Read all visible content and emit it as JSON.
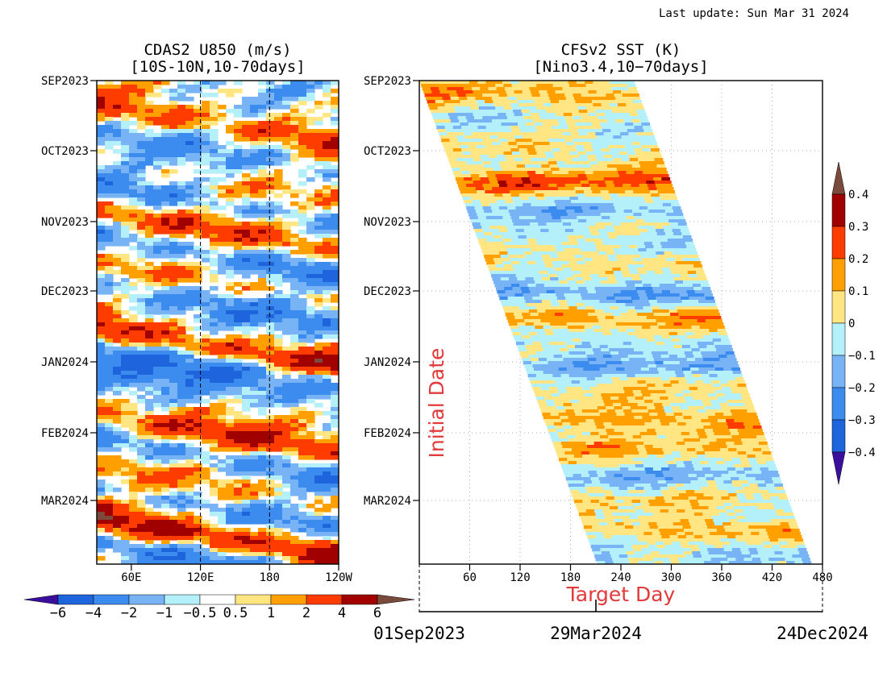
{
  "header": {
    "last_update": "Last update: Sun Mar 31 2024"
  },
  "colors": {
    "u850": [
      "#3a0f9e",
      "#1e64dc",
      "#3c8cf0",
      "#78b4f5",
      "#b4f0fa",
      "#ffffff",
      "#ffe682",
      "#ffa000",
      "#ff3c00",
      "#a00000",
      "#7a4a3a"
    ],
    "sst": [
      "#3a0f9e",
      "#1e64dc",
      "#3c8cf0",
      "#78b4f5",
      "#b4f0fa",
      "#ffe682",
      "#ffa000",
      "#ff3c00",
      "#a00000",
      "#7a4a3a"
    ],
    "annotation": "#e23a3a"
  },
  "chart_data": [
    {
      "type": "heatmap",
      "title": "CDAS2 U850 (m/s)",
      "subtitle": "[10S-10N,10-70days]",
      "y_ticks": [
        "SEP2023",
        "OCT2023",
        "NOV2023",
        "DEC2023",
        "JAN2024",
        "FEB2024",
        "MAR2024"
      ],
      "x_ticks": [
        "60E",
        "120E",
        "180",
        "120W"
      ],
      "x_range": [
        30,
        240
      ],
      "dashed_lines_x": [
        120,
        180
      ],
      "colorbar": {
        "labels": [
          "−6",
          "−4",
          "−2",
          "−1",
          "−0.5",
          "0.5",
          "1",
          "2",
          "4",
          "6"
        ],
        "levels": [
          -6,
          -4,
          -2,
          -1,
          -0.5,
          0.5,
          1,
          2,
          4,
          6
        ]
      },
      "bands": [
        {
          "t": 0.05,
          "v": 3.0,
          "p": 0.0
        },
        {
          "t": 0.12,
          "v": -2.0,
          "p": 0.15
        },
        {
          "t": 0.18,
          "v": 0.8,
          "p": 0.05
        },
        {
          "t": 0.24,
          "v": -2.5,
          "p": 0.3
        },
        {
          "t": 0.3,
          "v": 3.0,
          "p": 0.4
        },
        {
          "t": 0.36,
          "v": -3.0,
          "p": 0.45
        },
        {
          "t": 0.42,
          "v": 1.5,
          "p": 0.6
        },
        {
          "t": 0.48,
          "v": -2.5,
          "p": 0.7
        },
        {
          "t": 0.53,
          "v": 4.5,
          "p": 0.2
        },
        {
          "t": 0.59,
          "v": -3.5,
          "p": 0.5
        },
        {
          "t": 0.64,
          "v": -2.0,
          "p": 0.6
        },
        {
          "t": 0.7,
          "v": 3.5,
          "p": 0.1
        },
        {
          "t": 0.76,
          "v": -3.0,
          "p": 0.3
        },
        {
          "t": 0.82,
          "v": 2.0,
          "p": 0.15
        },
        {
          "t": 0.88,
          "v": -2.5,
          "p": 0.5
        },
        {
          "t": 0.93,
          "v": 5.0,
          "p": 0.3
        },
        {
          "t": 0.985,
          "v": -3.0,
          "p": 0.4
        }
      ]
    },
    {
      "type": "heatmap",
      "title": "CFSv2 SST (K)",
      "subtitle": "[Nino3.4,10−70days]",
      "y_ticks": [
        "SEP2023",
        "OCT2023",
        "NOV2023",
        "DEC2023",
        "JAN2024",
        "FEB2024",
        "MAR2024"
      ],
      "x_ticks": [
        "60",
        "120",
        "180",
        "240",
        "300",
        "360",
        "420",
        "480"
      ],
      "x_range": [
        0,
        480
      ],
      "xlabel": "Target Day",
      "ylabel": "Initial Date",
      "forecast_span_days": 255,
      "date_axis": {
        "start": "01Sep2023",
        "mid": "29Mar2024",
        "end": "24Dec2024"
      },
      "colorbar": {
        "labels": [
          "0.4",
          "0.3",
          "0.2",
          "0.1",
          "0",
          "−0.1",
          "−0.2",
          "−0.3",
          "−0.4"
        ],
        "levels": [
          -0.4,
          -0.3,
          -0.2,
          -0.1,
          0,
          0.1,
          0.2,
          0.3,
          0.4
        ]
      },
      "bands": [
        {
          "t": 0.03,
          "v": 0.12
        },
        {
          "t": 0.09,
          "v": -0.05
        },
        {
          "t": 0.15,
          "v": 0.05
        },
        {
          "t": 0.21,
          "v": 0.22
        },
        {
          "t": 0.27,
          "v": -0.12
        },
        {
          "t": 0.32,
          "v": -0.05
        },
        {
          "t": 0.38,
          "v": 0.05
        },
        {
          "t": 0.44,
          "v": -0.2
        },
        {
          "t": 0.49,
          "v": 0.15
        },
        {
          "t": 0.54,
          "v": -0.08
        },
        {
          "t": 0.59,
          "v": -0.15
        },
        {
          "t": 0.64,
          "v": 0.05
        },
        {
          "t": 0.7,
          "v": 0.15
        },
        {
          "t": 0.76,
          "v": 0.1
        },
        {
          "t": 0.82,
          "v": -0.12
        },
        {
          "t": 0.87,
          "v": 0.05
        },
        {
          "t": 0.93,
          "v": 0.12
        },
        {
          "t": 0.98,
          "v": -0.1
        }
      ]
    }
  ]
}
